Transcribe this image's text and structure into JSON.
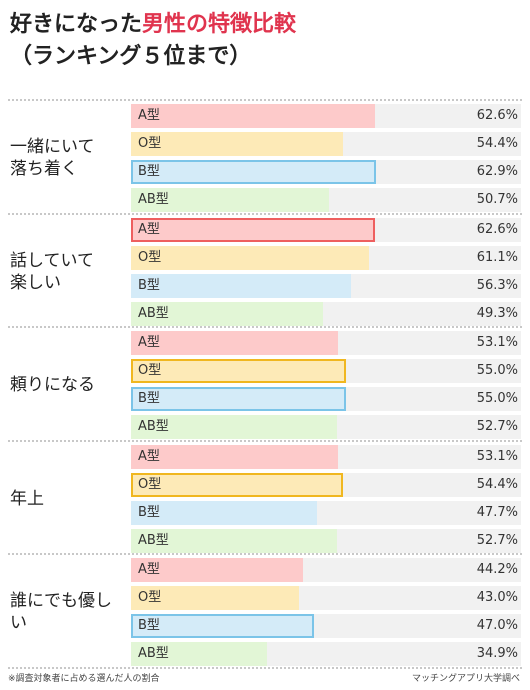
{
  "title": {
    "line1_plain": "好きになった",
    "line1_accent": "男性の特徴比較",
    "line2": "（ランキング５位まで）"
  },
  "footnote": "※調査対象者に占める選んだ人の割合",
  "source": "マッチングアプリ大学調べ",
  "colors": {
    "A": {
      "fill": "#fdcaca",
      "border": "#ee5f5f"
    },
    "O": {
      "fill": "#fdeab7",
      "border": "#f0b720"
    },
    "B": {
      "fill": "#d4ebf8",
      "border": "#7bc4e8"
    },
    "AB": {
      "fill": "#e2f6d6",
      "border": "#9fd98a"
    },
    "accent": "#e0344e"
  },
  "chart_data": {
    "type": "bar",
    "orientation": "horizontal",
    "unit": "%",
    "xlim": [
      0,
      100
    ],
    "series_names": [
      "A型",
      "O型",
      "B型",
      "AB型"
    ],
    "groups": [
      {
        "label_lines": [
          "一緒にいて",
          "落ち着く"
        ],
        "bars": [
          {
            "type": "A型",
            "key": "A",
            "value": 62.6,
            "label": "62.6%",
            "highlight": false
          },
          {
            "type": "O型",
            "key": "O",
            "value": 54.4,
            "label": "54.4%",
            "highlight": false
          },
          {
            "type": "B型",
            "key": "B",
            "value": 62.9,
            "label": "62.9%",
            "highlight": true
          },
          {
            "type": "AB型",
            "key": "AB",
            "value": 50.7,
            "label": "50.7%",
            "highlight": false
          }
        ]
      },
      {
        "label_lines": [
          "話していて",
          "楽しい"
        ],
        "bars": [
          {
            "type": "A型",
            "key": "A",
            "value": 62.6,
            "label": "62.6%",
            "highlight": true
          },
          {
            "type": "O型",
            "key": "O",
            "value": 61.1,
            "label": "61.1%",
            "highlight": false
          },
          {
            "type": "B型",
            "key": "B",
            "value": 56.3,
            "label": "56.3%",
            "highlight": false
          },
          {
            "type": "AB型",
            "key": "AB",
            "value": 49.3,
            "label": "49.3%",
            "highlight": false
          }
        ]
      },
      {
        "label_lines": [
          "頼りになる"
        ],
        "bars": [
          {
            "type": "A型",
            "key": "A",
            "value": 53.1,
            "label": "53.1%",
            "highlight": false
          },
          {
            "type": "O型",
            "key": "O",
            "value": 55.0,
            "label": "55.0%",
            "highlight": true
          },
          {
            "type": "B型",
            "key": "B",
            "value": 55.0,
            "label": "55.0%",
            "highlight": true
          },
          {
            "type": "AB型",
            "key": "AB",
            "value": 52.7,
            "label": "52.7%",
            "highlight": false
          }
        ]
      },
      {
        "label_lines": [
          "年上"
        ],
        "bars": [
          {
            "type": "A型",
            "key": "A",
            "value": 53.1,
            "label": "53.1%",
            "highlight": false
          },
          {
            "type": "O型",
            "key": "O",
            "value": 54.4,
            "label": "54.4%",
            "highlight": true
          },
          {
            "type": "B型",
            "key": "B",
            "value": 47.7,
            "label": "47.7%",
            "highlight": false
          },
          {
            "type": "AB型",
            "key": "AB",
            "value": 52.7,
            "label": "52.7%",
            "highlight": false
          }
        ]
      },
      {
        "label_lines": [
          "誰にでも優しい"
        ],
        "bars": [
          {
            "type": "A型",
            "key": "A",
            "value": 44.2,
            "label": "44.2%",
            "highlight": false
          },
          {
            "type": "O型",
            "key": "O",
            "value": 43.0,
            "label": "43.0%",
            "highlight": false
          },
          {
            "type": "B型",
            "key": "B",
            "value": 47.0,
            "label": "47.0%",
            "highlight": true
          },
          {
            "type": "AB型",
            "key": "AB",
            "value": 34.9,
            "label": "34.9%",
            "highlight": false
          }
        ]
      }
    ]
  }
}
